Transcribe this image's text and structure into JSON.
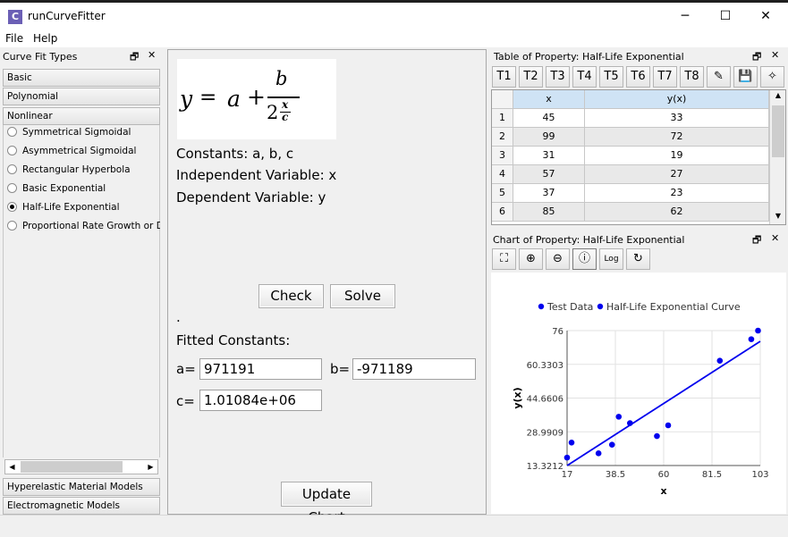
{
  "window": {
    "title": "runCurveFitter",
    "icon_letter": "C",
    "minimize": "─",
    "maximize": "☐",
    "close": "✕"
  },
  "menu": [
    "File",
    "Help"
  ],
  "left_panel": {
    "title": "Curve Fit Types",
    "categories_top": [
      "Basic",
      "Polynomial",
      "Nonlinear"
    ],
    "nonlinear_options": [
      {
        "label": "Symmetrical Sigmoidal",
        "selected": false
      },
      {
        "label": "Asymmetrical Sigmoidal",
        "selected": false
      },
      {
        "label": "Rectangular Hyperbola",
        "selected": false
      },
      {
        "label": "Basic Exponential",
        "selected": false
      },
      {
        "label": "Half-Life Exponential",
        "selected": true
      },
      {
        "label": "Proportional Rate Growth or Decay",
        "selected": false
      }
    ],
    "categories_bottom": [
      "Hyperelastic Material Models",
      "Electromagnetic Models"
    ]
  },
  "middle": {
    "formula": {
      "y": "y",
      "eq": "=",
      "a": "a",
      "plus": "+",
      "b": "b",
      "two": "2",
      "x": "x",
      "c": "c"
    },
    "constants": "Constants: a, b, c",
    "independent": "Independent Variable: x",
    "dependent": "Dependent Variable: y",
    "check_label": "Check",
    "solve_label": "Solve",
    "dot": ".",
    "fitted_title": "Fitted Constants:",
    "a_label": "a=",
    "a_value": "971191",
    "b_label": "b=",
    "b_value": "-971189",
    "c_label": "c=",
    "c_value": "1.01084e+06",
    "update_label": "Update Chart"
  },
  "table": {
    "title": "Table of Property: Half-Life Exponential",
    "tabs": [
      "T1",
      "T2",
      "T3",
      "T4",
      "T5",
      "T6",
      "T7",
      "T8"
    ],
    "columns": [
      "x",
      "y(x)"
    ],
    "rows": [
      {
        "n": "1",
        "x": "45",
        "y": "33"
      },
      {
        "n": "2",
        "x": "99",
        "y": "72"
      },
      {
        "n": "3",
        "x": "31",
        "y": "19"
      },
      {
        "n": "4",
        "x": "57",
        "y": "27"
      },
      {
        "n": "5",
        "x": "37",
        "y": "23"
      },
      {
        "n": "6",
        "x": "85",
        "y": "62"
      }
    ]
  },
  "chart_panel": {
    "title": "Chart of Property: Half-Life Exponential",
    "log_label": "Log"
  },
  "chart_data": {
    "type": "scatter",
    "xlabel": "x",
    "ylabel": "y(x)",
    "legend": [
      "Test Data",
      "Half-Life Exponential Curve"
    ],
    "legend_position": "top",
    "xlim": [
      17,
      103
    ],
    "ylim": [
      13.3212,
      76
    ],
    "xticks": [
      "17",
      "38.5",
      "60",
      "81.5",
      "103"
    ],
    "yticks": [
      "13.3212",
      "28.9909",
      "44.6606",
      "60.3303",
      "76"
    ],
    "grid": true,
    "points": [
      {
        "x": 17,
        "y": 17
      },
      {
        "x": 19,
        "y": 24
      },
      {
        "x": 31,
        "y": 19
      },
      {
        "x": 37,
        "y": 23
      },
      {
        "x": 40,
        "y": 36
      },
      {
        "x": 45,
        "y": 33
      },
      {
        "x": 57,
        "y": 27
      },
      {
        "x": 62,
        "y": 32
      },
      {
        "x": 85,
        "y": 62
      },
      {
        "x": 99,
        "y": 72
      },
      {
        "x": 102,
        "y": 76
      }
    ],
    "curve": [
      {
        "x": 17,
        "y": 13.3
      },
      {
        "x": 103,
        "y": 71
      }
    ],
    "colors": {
      "points": "#0000ee",
      "curve": "#0000ee"
    }
  }
}
